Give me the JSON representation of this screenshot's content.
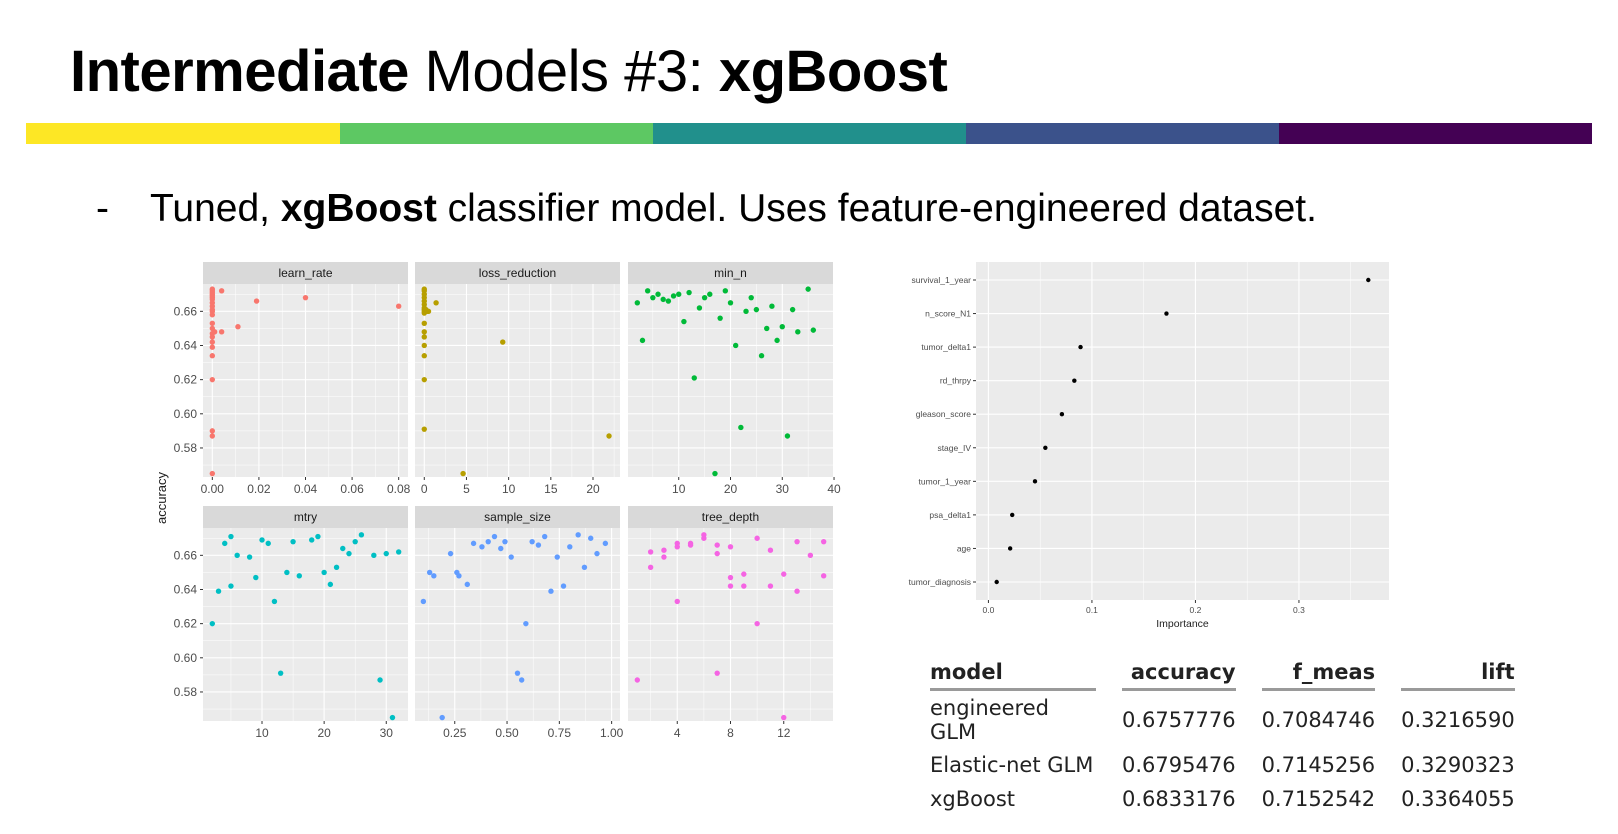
{
  "slide": {
    "title_bold": "Intermediate",
    "title_mid": " Models #3: ",
    "title_bold2": "xgBoost",
    "stripe_colors": [
      "#FDE725",
      "#5DC863",
      "#21908C",
      "#3B528B",
      "#440154"
    ],
    "bullet_dash": "-",
    "bullet_pre": "Tuned, ",
    "bullet_bold": "xgBoost",
    "bullet_post": " classifier model. Uses feature-engineered dataset."
  },
  "chart_data": [
    {
      "type": "scatter",
      "ylabel": "accuracy",
      "ylim": [
        0.563,
        0.676
      ],
      "yticks": [
        0.58,
        0.6,
        0.62,
        0.64,
        0.66
      ],
      "ytick_labels": [
        "0.58",
        "0.60",
        "0.62",
        "0.64",
        "0.66"
      ],
      "grid": true,
      "panels": [
        {
          "name": "learn_rate",
          "color": "#F8766D",
          "xlim": [
            -0.004,
            0.084
          ],
          "xticks": [
            0,
            0.02,
            0.04,
            0.06,
            0.08
          ],
          "xtick_labels": [
            "0.00",
            "0.02",
            "0.04",
            "0.06",
            "0.08"
          ],
          "points": [
            [
              0.0,
              0.673
            ],
            [
              0.0,
              0.672
            ],
            [
              0.0,
              0.671
            ],
            [
              0.0,
              0.67
            ],
            [
              0.0,
              0.669
            ],
            [
              0.0,
              0.668
            ],
            [
              0.0,
              0.667
            ],
            [
              0.0,
              0.665
            ],
            [
              0.0,
              0.663
            ],
            [
              0.0,
              0.661
            ],
            [
              0.0,
              0.66
            ],
            [
              0.0,
              0.658
            ],
            [
              0.0,
              0.653
            ],
            [
              0.0,
              0.65
            ],
            [
              0.0,
              0.647
            ],
            [
              0.0,
              0.645
            ],
            [
              0.0,
              0.642
            ],
            [
              0.0,
              0.639
            ],
            [
              0.0,
              0.634
            ],
            [
              0.0,
              0.62
            ],
            [
              0.0,
              0.59
            ],
            [
              0.0,
              0.587
            ],
            [
              0.0,
              0.565
            ],
            [
              0.001,
              0.648
            ],
            [
              0.004,
              0.648
            ],
            [
              0.004,
              0.672
            ],
            [
              0.011,
              0.651
            ],
            [
              0.019,
              0.666
            ],
            [
              0.04,
              0.668
            ],
            [
              0.08,
              0.663
            ]
          ]
        },
        {
          "name": "loss_reduction",
          "color": "#B79F00",
          "xlim": [
            -1.1,
            23.2
          ],
          "xticks": [
            0,
            5,
            10,
            15,
            20
          ],
          "xtick_labels": [
            "0",
            "5",
            "10",
            "15",
            "20"
          ],
          "points": [
            [
              0.0,
              0.673
            ],
            [
              0.0,
              0.672
            ],
            [
              0.0,
              0.67
            ],
            [
              0.0,
              0.668
            ],
            [
              0.0,
              0.666
            ],
            [
              0.0,
              0.664
            ],
            [
              0.0,
              0.662
            ],
            [
              0.0,
              0.661
            ],
            [
              0.0,
              0.66
            ],
            [
              0.0,
              0.659
            ],
            [
              0.0,
              0.653
            ],
            [
              0.0,
              0.648
            ],
            [
              0.0,
              0.645
            ],
            [
              0.0,
              0.64
            ],
            [
              0.0,
              0.634
            ],
            [
              0.0,
              0.62
            ],
            [
              0.0,
              0.591
            ],
            [
              0.2,
              0.661
            ],
            [
              0.3,
              0.66
            ],
            [
              0.5,
              0.66
            ],
            [
              1.4,
              0.665
            ],
            [
              4.6,
              0.565
            ],
            [
              9.3,
              0.642
            ],
            [
              21.9,
              0.587
            ]
          ]
        },
        {
          "name": "min_n",
          "color": "#00BA38",
          "xlim": [
            0.2,
            39.8
          ],
          "xticks": [
            10,
            20,
            30,
            40
          ],
          "xtick_labels": [
            "10",
            "20",
            "30",
            "40"
          ],
          "points": [
            [
              2,
              0.665
            ],
            [
              3,
              0.643
            ],
            [
              4,
              0.672
            ],
            [
              5,
              0.668
            ],
            [
              6,
              0.67
            ],
            [
              7,
              0.667
            ],
            [
              8,
              0.666
            ],
            [
              9,
              0.669
            ],
            [
              10,
              0.67
            ],
            [
              11,
              0.654
            ],
            [
              12,
              0.671
            ],
            [
              13,
              0.621
            ],
            [
              14,
              0.662
            ],
            [
              15,
              0.668
            ],
            [
              16,
              0.67
            ],
            [
              17,
              0.565
            ],
            [
              18,
              0.656
            ],
            [
              19,
              0.672
            ],
            [
              20,
              0.665
            ],
            [
              21,
              0.64
            ],
            [
              22,
              0.592
            ],
            [
              23,
              0.66
            ],
            [
              24,
              0.668
            ],
            [
              25,
              0.661
            ],
            [
              26,
              0.634
            ],
            [
              27,
              0.65
            ],
            [
              28,
              0.663
            ],
            [
              29,
              0.643
            ],
            [
              30,
              0.651
            ],
            [
              31,
              0.587
            ],
            [
              32,
              0.661
            ],
            [
              33,
              0.648
            ],
            [
              35,
              0.673
            ],
            [
              36,
              0.649
            ]
          ]
        },
        {
          "name": "mtry",
          "color": "#00BFC4",
          "xlim": [
            0.5,
            33.5
          ],
          "xticks": [
            10,
            20,
            30
          ],
          "xtick_labels": [
            "10",
            "20",
            "30"
          ],
          "points": [
            [
              2,
              0.62
            ],
            [
              3,
              0.639
            ],
            [
              4,
              0.667
            ],
            [
              5,
              0.671
            ],
            [
              5,
              0.642
            ],
            [
              6,
              0.66
            ],
            [
              8,
              0.659
            ],
            [
              9,
              0.647
            ],
            [
              10,
              0.669
            ],
            [
              11,
              0.667
            ],
            [
              12,
              0.633
            ],
            [
              13,
              0.591
            ],
            [
              14,
              0.65
            ],
            [
              15,
              0.668
            ],
            [
              16,
              0.648
            ],
            [
              18,
              0.669
            ],
            [
              19,
              0.671
            ],
            [
              20,
              0.65
            ],
            [
              21,
              0.643
            ],
            [
              22,
              0.653
            ],
            [
              23,
              0.664
            ],
            [
              24,
              0.661
            ],
            [
              25,
              0.668
            ],
            [
              26,
              0.672
            ],
            [
              28,
              0.66
            ],
            [
              29,
              0.587
            ],
            [
              30,
              0.661
            ],
            [
              31,
              0.565
            ],
            [
              32,
              0.662
            ]
          ]
        },
        {
          "name": "sample_size",
          "color": "#619CFF",
          "xlim": [
            0.06,
            1.04
          ],
          "xticks": [
            0.25,
            0.5,
            0.75,
            1.0
          ],
          "xtick_labels": [
            "0.25",
            "0.50",
            "0.75",
            "1.00"
          ],
          "points": [
            [
              0.1,
              0.633
            ],
            [
              0.13,
              0.65
            ],
            [
              0.15,
              0.648
            ],
            [
              0.19,
              0.565
            ],
            [
              0.23,
              0.661
            ],
            [
              0.26,
              0.65
            ],
            [
              0.27,
              0.648
            ],
            [
              0.31,
              0.643
            ],
            [
              0.34,
              0.667
            ],
            [
              0.38,
              0.665
            ],
            [
              0.41,
              0.668
            ],
            [
              0.44,
              0.671
            ],
            [
              0.47,
              0.664
            ],
            [
              0.49,
              0.668
            ],
            [
              0.52,
              0.659
            ],
            [
              0.55,
              0.591
            ],
            [
              0.57,
              0.587
            ],
            [
              0.59,
              0.62
            ],
            [
              0.62,
              0.668
            ],
            [
              0.65,
              0.666
            ],
            [
              0.68,
              0.671
            ],
            [
              0.71,
              0.639
            ],
            [
              0.74,
              0.659
            ],
            [
              0.77,
              0.642
            ],
            [
              0.8,
              0.665
            ],
            [
              0.84,
              0.672
            ],
            [
              0.87,
              0.653
            ],
            [
              0.9,
              0.67
            ],
            [
              0.93,
              0.661
            ],
            [
              0.97,
              0.667
            ]
          ]
        },
        {
          "name": "tree_depth",
          "color": "#F564E3",
          "xlim": [
            0.3,
            15.7
          ],
          "xticks": [
            4,
            8,
            12
          ],
          "xtick_labels": [
            "4",
            "8",
            "12"
          ],
          "points": [
            [
              1,
              0.587
            ],
            [
              2,
              0.662
            ],
            [
              2,
              0.653
            ],
            [
              3,
              0.663
            ],
            [
              3,
              0.659
            ],
            [
              4,
              0.667
            ],
            [
              4,
              0.665
            ],
            [
              4,
              0.633
            ],
            [
              5,
              0.667
            ],
            [
              5,
              0.666
            ],
            [
              6,
              0.672
            ],
            [
              6,
              0.67
            ],
            [
              7,
              0.591
            ],
            [
              7,
              0.666
            ],
            [
              7,
              0.661
            ],
            [
              8,
              0.665
            ],
            [
              8,
              0.647
            ],
            [
              8,
              0.642
            ],
            [
              9,
              0.649
            ],
            [
              9,
              0.642
            ],
            [
              10,
              0.67
            ],
            [
              10,
              0.62
            ],
            [
              11,
              0.663
            ],
            [
              11,
              0.642
            ],
            [
              12,
              0.649
            ],
            [
              12,
              0.565
            ],
            [
              13,
              0.668
            ],
            [
              13,
              0.639
            ],
            [
              14,
              0.66
            ],
            [
              15,
              0.668
            ],
            [
              15,
              0.648
            ]
          ]
        }
      ]
    },
    {
      "type": "scatter",
      "xlabel": "Importance",
      "xlim": [
        -0.012,
        0.387
      ],
      "xticks": [
        0.0,
        0.1,
        0.2,
        0.3
      ],
      "xtick_labels": [
        "0.0",
        "0.1",
        "0.2",
        "0.3"
      ],
      "grid": true,
      "color": "#000000",
      "categories": [
        "survival_1_year",
        "n_score_N1",
        "tumor_delta1",
        "rd_thrpy",
        "gleason_score",
        "stage_IV",
        "tumor_1_year",
        "psa_delta1",
        "age",
        "tumor_diagnosis"
      ],
      "values": [
        0.367,
        0.172,
        0.089,
        0.083,
        0.071,
        0.055,
        0.045,
        0.023,
        0.021,
        0.008
      ]
    }
  ],
  "table": {
    "headers": [
      "model",
      "accuracy",
      "f_meas",
      "lift"
    ],
    "rows": [
      [
        "engineered GLM",
        "0.6757776",
        "0.7084746",
        "0.3216590"
      ],
      [
        "Elastic-net GLM",
        "0.6795476",
        "0.7145256",
        "0.3290323"
      ],
      [
        "xgBoost",
        "0.6833176",
        "0.7152542",
        "0.3364055"
      ]
    ]
  }
}
